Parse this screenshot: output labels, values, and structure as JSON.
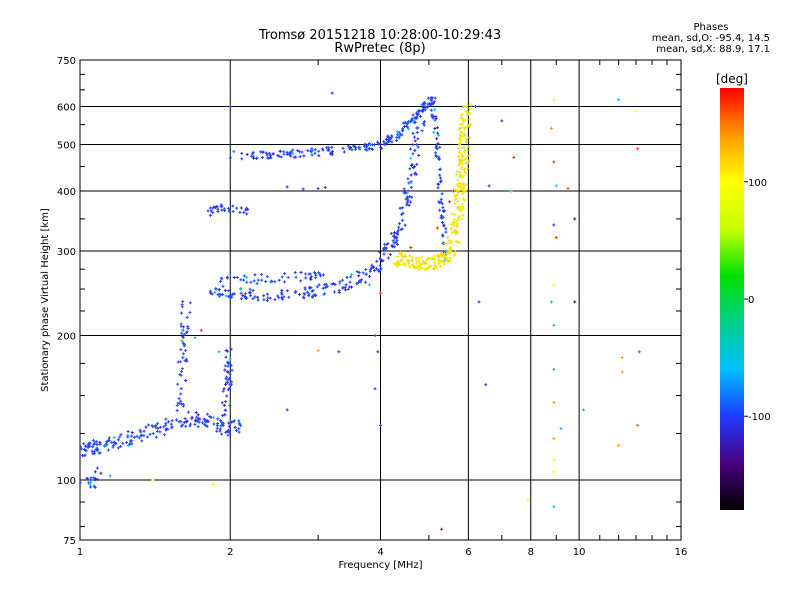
{
  "header": {
    "title_line1": "Tromsø 20151218 10:28:00-10:29:43",
    "title_line2": "RwPretec (8p)"
  },
  "phase_box": {
    "heading": "Phases",
    "line_o": "mean, sd,O: -95.4, 14.5",
    "line_x": "mean, sd,X: 88.9, 17.1"
  },
  "chart_data": {
    "type": "scatter",
    "xlabel": "Frequency [MHz]",
    "ylabel": "Stationary phase Virtual Height [km]",
    "xscale": "log",
    "yscale": "log",
    "xlim": [
      1,
      16
    ],
    "ylim": [
      75,
      750
    ],
    "x_ticks": [
      1,
      2,
      4,
      6,
      8,
      10,
      16
    ],
    "y_ticks": [
      75,
      100,
      200,
      300,
      400,
      500,
      600,
      750
    ],
    "grid": true,
    "colorbar": {
      "label": "[deg]",
      "range": [
        -180,
        180
      ],
      "ticks": [
        100,
        0,
        -100
      ],
      "colors": [
        "#000000",
        "#4b0082",
        "#1d3bff",
        "#00bfff",
        "#00d08a",
        "#00e000",
        "#c8ff00",
        "#ffff00",
        "#ff9a00",
        "#ff0000"
      ]
    },
    "traces": [
      {
        "note": "F2 main trace (O-mode)",
        "phase": -100,
        "color": "#2040ff",
        "points": [
          [
            1.85,
            250
          ],
          [
            2.0,
            245
          ],
          [
            2.2,
            243
          ],
          [
            2.5,
            242
          ],
          [
            2.8,
            244
          ],
          [
            3.0,
            248
          ],
          [
            3.3,
            252
          ],
          [
            3.6,
            262
          ],
          [
            3.9,
            280
          ],
          [
            4.1,
            300
          ],
          [
            4.3,
            325
          ],
          [
            4.45,
            360
          ],
          [
            4.6,
            420
          ],
          [
            4.7,
            500
          ],
          [
            4.8,
            560
          ]
        ],
        "spread": 0.04,
        "density": 240
      },
      {
        "note": "F2 low-frequency branch",
        "phase": -100,
        "color": "#2348ff",
        "points": [
          [
            1.9,
            265
          ],
          [
            2.3,
            262
          ],
          [
            2.7,
            265
          ],
          [
            3.1,
            268
          ]
        ],
        "spread": 0.03,
        "density": 50
      },
      {
        "note": "F2 upper trace (second hop)",
        "phase": -100,
        "color": "#2040ff",
        "points": [
          [
            2.0,
            475
          ],
          [
            2.4,
            475
          ],
          [
            2.8,
            480
          ],
          [
            3.2,
            485
          ],
          [
            3.6,
            490
          ],
          [
            4.0,
            500
          ],
          [
            4.3,
            520
          ],
          [
            4.6,
            560
          ],
          [
            4.9,
            600
          ],
          [
            5.1,
            620
          ]
        ],
        "spread": 0.025,
        "density": 200
      },
      {
        "note": "upper trace steep branch",
        "phase": -100,
        "color": "#2040ff",
        "points": [
          [
            5.05,
            620
          ],
          [
            5.15,
            560
          ],
          [
            5.2,
            500
          ],
          [
            5.25,
            440
          ],
          [
            5.3,
            380
          ],
          [
            5.35,
            330
          ],
          [
            5.4,
            290
          ]
        ],
        "spread": 0.02,
        "density": 70
      },
      {
        "note": "X-mode trace",
        "phase": 90,
        "color": "#f0e800",
        "points": [
          [
            4.3,
            290
          ],
          [
            4.6,
            285
          ],
          [
            5.0,
            280
          ],
          [
            5.4,
            290
          ],
          [
            5.6,
            320
          ],
          [
            5.75,
            380
          ],
          [
            5.85,
            450
          ],
          [
            5.9,
            520
          ],
          [
            5.95,
            600
          ]
        ],
        "spread": 0.045,
        "density": 300
      },
      {
        "note": "E/sporadic layer",
        "phase": -100,
        "color": "#2244ff",
        "points": [
          [
            1.0,
            115
          ],
          [
            1.1,
            118
          ],
          [
            1.2,
            120
          ],
          [
            1.35,
            125
          ],
          [
            1.5,
            130
          ],
          [
            1.65,
            135
          ],
          [
            1.8,
            132
          ],
          [
            1.95,
            128
          ],
          [
            2.1,
            130
          ]
        ],
        "spread": 0.045,
        "density": 190
      },
      {
        "note": "E cusp vertical",
        "phase": -100,
        "color": "#2a4aff",
        "points": [
          [
            1.58,
            140
          ],
          [
            1.6,
            170
          ],
          [
            1.62,
            200
          ],
          [
            1.64,
            240
          ]
        ],
        "spread": 0.035,
        "density": 50
      },
      {
        "note": "near-vertical cluster at 2 MHz",
        "phase": -100,
        "color": "#2646ff",
        "points": [
          [
            1.95,
            135
          ],
          [
            1.98,
            160
          ],
          [
            2.0,
            190
          ]
        ],
        "spread": 0.03,
        "density": 40
      },
      {
        "note": "intermediate cluster 1.8-2.1 MHz",
        "phase": -100,
        "color": "#2040ff",
        "points": [
          [
            1.8,
            360
          ],
          [
            1.9,
            370
          ],
          [
            2.0,
            368
          ],
          [
            2.2,
            362
          ]
        ],
        "spread": 0.02,
        "density": 30
      },
      {
        "note": "low-height tail",
        "phase": -100,
        "color": "#2040ff",
        "points": [
          [
            1.0,
            100
          ],
          [
            1.05,
            98
          ],
          [
            1.1,
            104
          ]
        ],
        "spread": 0.03,
        "density": 20
      }
    ],
    "scatter_points": [
      {
        "x": 6.2,
        "y": 600,
        "c": "#2040ff"
      },
      {
        "x": 7.0,
        "y": 560,
        "c": "#2040ff"
      },
      {
        "x": 7.4,
        "y": 470,
        "c": "#ff2000"
      },
      {
        "x": 6.6,
        "y": 410,
        "c": "#2040ff"
      },
      {
        "x": 7.3,
        "y": 400,
        "c": "#00bfff"
      },
      {
        "x": 8.9,
        "y": 620,
        "c": "#ffff00"
      },
      {
        "x": 8.8,
        "y": 540,
        "c": "#ff9a00"
      },
      {
        "x": 8.9,
        "y": 460,
        "c": "#ff3000"
      },
      {
        "x": 9.0,
        "y": 410,
        "c": "#00bfff"
      },
      {
        "x": 9.5,
        "y": 405,
        "c": "#ff6000"
      },
      {
        "x": 8.9,
        "y": 340,
        "c": "#2040ff"
      },
      {
        "x": 9.0,
        "y": 320,
        "c": "#ff3000"
      },
      {
        "x": 9.8,
        "y": 350,
        "c": "#4b0082"
      },
      {
        "x": 9.8,
        "y": 235,
        "c": "#4b0082"
      },
      {
        "x": 8.9,
        "y": 255,
        "c": "#ffff00"
      },
      {
        "x": 8.8,
        "y": 235,
        "c": "#00bfff"
      },
      {
        "x": 8.9,
        "y": 210,
        "c": "#00bfff"
      },
      {
        "x": 6.3,
        "y": 235,
        "c": "#2040ff"
      },
      {
        "x": 6.5,
        "y": 158,
        "c": "#2040ff"
      },
      {
        "x": 8.9,
        "y": 170,
        "c": "#00d08a"
      },
      {
        "x": 8.9,
        "y": 145,
        "c": "#ff9a00"
      },
      {
        "x": 8.9,
        "y": 122,
        "c": "#ff9a00"
      },
      {
        "x": 8.9,
        "y": 110,
        "c": "#ffff00"
      },
      {
        "x": 8.9,
        "y": 104,
        "c": "#ffff00"
      },
      {
        "x": 9.2,
        "y": 128,
        "c": "#00bfff"
      },
      {
        "x": 10.2,
        "y": 140,
        "c": "#00bfff"
      },
      {
        "x": 12.0,
        "y": 620,
        "c": "#00bfff"
      },
      {
        "x": 13.0,
        "y": 588,
        "c": "#ffff00"
      },
      {
        "x": 13.1,
        "y": 490,
        "c": "#ff3000"
      },
      {
        "x": 13.2,
        "y": 185,
        "c": "#ff3000"
      },
      {
        "x": 12.2,
        "y": 180,
        "c": "#ff9a00"
      },
      {
        "x": 12.2,
        "y": 168,
        "c": "#ff9a00"
      },
      {
        "x": 12.0,
        "y": 118,
        "c": "#ff9a00"
      },
      {
        "x": 13.1,
        "y": 130,
        "c": "#ff6000"
      },
      {
        "x": 8.9,
        "y": 88,
        "c": "#00bfff"
      },
      {
        "x": 7.9,
        "y": 91,
        "c": "#ffff00"
      },
      {
        "x": 5.3,
        "y": 79,
        "c": "#ff0000"
      },
      {
        "x": 3.9,
        "y": 200,
        "c": "#2040ff"
      },
      {
        "x": 3.95,
        "y": 185,
        "c": "#2040ff"
      },
      {
        "x": 3.3,
        "y": 185,
        "c": "#2040ff"
      },
      {
        "x": 3.0,
        "y": 186,
        "c": "#ff9a00"
      },
      {
        "x": 3.9,
        "y": 155,
        "c": "#2040ff"
      },
      {
        "x": 3.0,
        "y": 405,
        "c": "#2040ff"
      },
      {
        "x": 3.1,
        "y": 407,
        "c": "#2040ff"
      },
      {
        "x": 2.6,
        "y": 408,
        "c": "#2040ff"
      },
      {
        "x": 2.8,
        "y": 404,
        "c": "#2040ff"
      },
      {
        "x": 3.2,
        "y": 640,
        "c": "#2040ff"
      },
      {
        "x": 2.0,
        "y": 600,
        "c": "#2040ff"
      },
      {
        "x": 2.6,
        "y": 140,
        "c": "#2040ff"
      },
      {
        "x": 4.0,
        "y": 130,
        "c": "#2040ff"
      },
      {
        "x": 1.85,
        "y": 98,
        "c": "#ffff00"
      },
      {
        "x": 1.4,
        "y": 100,
        "c": "#ffff00"
      },
      {
        "x": 5.6,
        "y": 400,
        "c": "#ff2000"
      },
      {
        "x": 5.5,
        "y": 380,
        "c": "#ff2000"
      },
      {
        "x": 5.2,
        "y": 335,
        "c": "#ff3000"
      },
      {
        "x": 4.6,
        "y": 305,
        "c": "#ff2000"
      },
      {
        "x": 1.6,
        "y": 195,
        "c": "#00e000"
      },
      {
        "x": 1.7,
        "y": 198,
        "c": "#00d08a"
      },
      {
        "x": 1.75,
        "y": 205,
        "c": "#ff3000"
      },
      {
        "x": 1.9,
        "y": 185,
        "c": "#00d08a"
      },
      {
        "x": 4.0,
        "y": 245,
        "c": "#ff3000"
      },
      {
        "x": 3.8,
        "y": 255,
        "c": "#00bfff"
      },
      {
        "x": 3.5,
        "y": 268,
        "c": "#00d08a"
      },
      {
        "x": 2.1,
        "y": 250,
        "c": "#00d08a"
      },
      {
        "x": 1.15,
        "y": 102,
        "c": "#00bfff"
      },
      {
        "x": 1.25,
        "y": 118,
        "c": "#00bfff"
      }
    ]
  }
}
